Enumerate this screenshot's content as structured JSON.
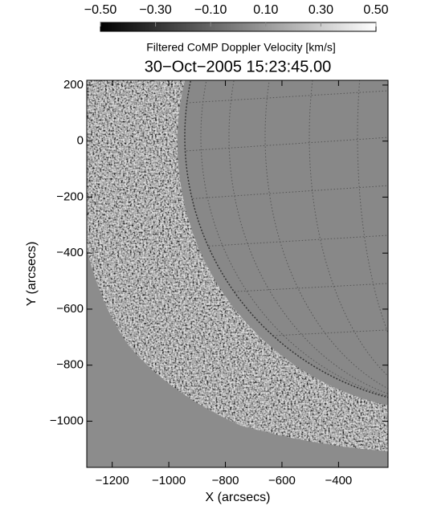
{
  "chart_data": {
    "type": "image",
    "title": "30−Oct−2005 15:23:45.00",
    "colorbar": {
      "label": "Filtered CoMP Doppler Velocity [km/s]",
      "lim": [
        -0.5,
        0.5
      ],
      "ticks": [
        {
          "value": -0.5,
          "label": "−0.50"
        },
        {
          "value": -0.3,
          "label": "−0.30"
        },
        {
          "value": -0.1,
          "label": "−0.10"
        },
        {
          "value": 0.1,
          "label": "0.10"
        },
        {
          "value": 0.3,
          "label": "0.30"
        },
        {
          "value": 0.5,
          "label": "0.50"
        }
      ]
    },
    "x_label": "X (arcsecs)",
    "y_label": "Y (arcsecs)",
    "xlim": [
      -1290,
      -225
    ],
    "xticks": [
      {
        "value": -1200,
        "label": "−1200"
      },
      {
        "value": -1000,
        "label": "−1000"
      },
      {
        "value": -800,
        "label": "−800"
      },
      {
        "value": -600,
        "label": "−600"
      },
      {
        "value": -400,
        "label": "−400"
      }
    ],
    "ylim": [
      -1165,
      217
    ],
    "yticks": [
      200,
      0,
      {
        "value": -200,
        "label": "−200"
      },
      {
        "value": -400,
        "label": "−400"
      },
      {
        "value": -600,
        "label": "−600"
      },
      {
        "value": -800,
        "label": "−800"
      },
      {
        "value": -1000,
        "label": "−1000"
      }
    ]
  }
}
